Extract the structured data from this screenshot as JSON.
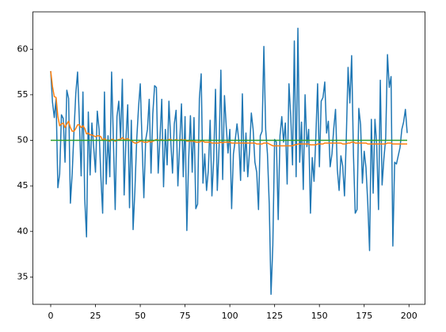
{
  "chart_data": {
    "type": "line",
    "x": [
      0,
      1,
      2,
      3,
      4,
      5,
      6,
      7,
      8,
      9,
      10,
      11,
      12,
      13,
      14,
      15,
      16,
      17,
      18,
      19,
      20,
      21,
      22,
      23,
      24,
      25,
      26,
      27,
      28,
      29,
      30,
      31,
      32,
      33,
      34,
      35,
      36,
      37,
      38,
      39,
      40,
      41,
      42,
      43,
      44,
      45,
      46,
      47,
      48,
      49,
      50,
      51,
      52,
      53,
      54,
      55,
      56,
      57,
      58,
      59,
      60,
      61,
      62,
      63,
      64,
      65,
      66,
      67,
      68,
      69,
      70,
      71,
      72,
      73,
      74,
      75,
      76,
      77,
      78,
      79,
      80,
      81,
      82,
      83,
      84,
      85,
      86,
      87,
      88,
      89,
      90,
      91,
      92,
      93,
      94,
      95,
      96,
      97,
      98,
      99,
      100,
      101,
      102,
      103,
      104,
      105,
      106,
      107,
      108,
      109,
      110,
      111,
      112,
      113,
      114,
      115,
      116,
      117,
      118,
      119,
      120,
      121,
      122,
      123,
      124,
      125,
      126,
      127,
      128,
      129,
      130,
      131,
      132,
      133,
      134,
      135,
      136,
      137,
      138,
      139,
      140,
      141,
      142,
      143,
      144,
      145,
      146,
      147,
      148,
      149,
      150,
      151,
      152,
      153,
      154,
      155,
      156,
      157,
      158,
      159,
      160,
      161,
      162,
      163,
      164,
      165,
      166,
      167,
      168,
      169,
      170,
      171,
      172,
      173,
      174,
      175,
      176,
      177,
      178,
      179,
      180,
      181,
      182,
      183,
      184,
      185,
      186,
      187,
      188,
      189,
      190,
      191,
      192,
      193,
      194,
      195,
      196,
      197,
      198,
      199
    ],
    "series": [
      {
        "color": "#1f77b4",
        "values": [
          57.6,
          54.2,
          52.5,
          54.6,
          44.8,
          46.3,
          52.8,
          52.4,
          47.6,
          55.5,
          54.6,
          43.1,
          46.4,
          51.0,
          55.1,
          57.5,
          52.2,
          46.1,
          55.3,
          43.6,
          39.4,
          53.1,
          46.2,
          51.9,
          49.2,
          46.5,
          53.2,
          51.2,
          46.0,
          42.0,
          55.3,
          45.2,
          50.5,
          46.0,
          57.5,
          50.0,
          42.4,
          52.6,
          54.3,
          50.2,
          56.7,
          44.0,
          50.1,
          53.9,
          42.6,
          52.2,
          40.2,
          44.5,
          50.0,
          53.5,
          56.2,
          49.8,
          43.7,
          50.0,
          51.2,
          54.5,
          46.4,
          52.9,
          56.0,
          55.8,
          46.4,
          50.2,
          54.5,
          44.9,
          51.2,
          47.3,
          54.3,
          50.0,
          46.4,
          51.8,
          53.3,
          45.0,
          49.6,
          54.0,
          46.0,
          52.6,
          40.1,
          47.8,
          52.7,
          46.5,
          52.5,
          42.5,
          43.0,
          54.6,
          57.3,
          45.3,
          48.5,
          44.5,
          46.7,
          52.2,
          43.9,
          48.0,
          55.6,
          44.5,
          49.3,
          57.7,
          45.7,
          54.9,
          51.5,
          48.6,
          51.2,
          42.5,
          48.5,
          50.0,
          51.8,
          50.0,
          45.6,
          55.1,
          46.6,
          50.8,
          46.0,
          48.8,
          53.0,
          51.2,
          47.6,
          46.5,
          42.4,
          50.5,
          51.0,
          60.3,
          51.2,
          48.5,
          43.0,
          33.1,
          38.5,
          50.1,
          49.8,
          41.3,
          50.5,
          52.6,
          49.8,
          51.9,
          45.2,
          56.2,
          52.6,
          47.3,
          60.9,
          46.0,
          62.3,
          47.6,
          52.0,
          44.6,
          55.0,
          49.3,
          51.2,
          42.0,
          48.1,
          45.5,
          50.3,
          56.2,
          47.1,
          54.3,
          54.7,
          56.4,
          50.8,
          52.1,
          47.1,
          48.5,
          51.3,
          53.4,
          46.8,
          44.5,
          48.3,
          47.2,
          43.9,
          50.2,
          58.0,
          54.1,
          59.3,
          48.5,
          42.0,
          42.4,
          53.5,
          51.7,
          45.3,
          48.8,
          47.0,
          43.1,
          37.9,
          52.3,
          44.2,
          52.3,
          49.5,
          42.4,
          56.6,
          45.1,
          48.0,
          50.2,
          59.4,
          55.8,
          57.0,
          38.4,
          47.6,
          47.4,
          48.3,
          49.2,
          51.2,
          52.0,
          53.4,
          50.8
        ]
      },
      {
        "color": "#ff7f0e",
        "values": [
          57.6,
          55.9,
          54.8,
          54.7,
          52.6,
          51.6,
          51.8,
          51.9,
          51.4,
          51.8,
          52.1,
          51.4,
          51.0,
          51.0,
          51.3,
          51.7,
          51.7,
          51.4,
          51.6,
          51.3,
          50.7,
          50.8,
          50.6,
          50.6,
          50.5,
          50.4,
          50.5,
          50.5,
          50.4,
          50.0,
          50.2,
          50.0,
          50.0,
          49.9,
          50.1,
          50.1,
          49.9,
          50.0,
          50.1,
          50.1,
          50.3,
          50.1,
          50.1,
          50.2,
          50.0,
          50.0,
          49.8,
          49.7,
          49.7,
          49.8,
          49.9,
          49.9,
          49.8,
          49.8,
          49.8,
          49.9,
          49.8,
          49.9,
          50.0,
          50.1,
          50.0,
          50.0,
          50.1,
          50.0,
          50.0,
          50.0,
          50.1,
          50.1,
          50.0,
          50.0,
          50.1,
          50.0,
          50.0,
          50.1,
          50.0,
          50.1,
          49.9,
          49.9,
          49.9,
          49.9,
          49.9,
          49.8,
          49.8,
          49.8,
          49.9,
          49.9,
          49.8,
          49.8,
          49.8,
          49.8,
          49.7,
          49.7,
          49.7,
          49.7,
          49.7,
          49.8,
          49.7,
          49.8,
          49.8,
          49.8,
          49.8,
          49.7,
          49.7,
          49.7,
          49.7,
          49.7,
          49.7,
          49.7,
          49.7,
          49.7,
          49.7,
          49.7,
          49.7,
          49.7,
          49.7,
          49.6,
          49.6,
          49.6,
          49.6,
          49.7,
          49.7,
          49.7,
          49.6,
          49.5,
          49.4,
          49.4,
          49.4,
          49.4,
          49.4,
          49.4,
          49.4,
          49.4,
          49.4,
          49.4,
          49.4,
          49.4,
          49.5,
          49.5,
          49.6,
          49.6,
          49.6,
          49.6,
          49.6,
          49.6,
          49.6,
          49.5,
          49.5,
          49.5,
          49.5,
          49.6,
          49.6,
          49.6,
          49.6,
          49.7,
          49.7,
          49.7,
          49.7,
          49.7,
          49.7,
          49.7,
          49.7,
          49.7,
          49.7,
          49.6,
          49.6,
          49.6,
          49.7,
          49.7,
          49.8,
          49.8,
          49.7,
          49.7,
          49.7,
          49.7,
          49.7,
          49.7,
          49.7,
          49.6,
          49.6,
          49.6,
          49.6,
          49.6,
          49.6,
          49.6,
          49.6,
          49.6,
          49.6,
          49.6,
          49.7,
          49.7,
          49.7,
          49.6,
          49.6,
          49.6,
          49.6,
          49.6,
          49.6,
          49.6,
          49.6,
          49.6
        ]
      },
      {
        "color": "#2ca02c",
        "values": [
          50,
          50,
          50,
          50,
          50,
          50,
          50,
          50,
          50,
          50,
          50,
          50,
          50,
          50,
          50,
          50,
          50,
          50,
          50,
          50,
          50,
          50,
          50,
          50,
          50,
          50,
          50,
          50,
          50,
          50,
          50,
          50,
          50,
          50,
          50,
          50,
          50,
          50,
          50,
          50,
          50,
          50,
          50,
          50,
          50,
          50,
          50,
          50,
          50,
          50,
          50,
          50,
          50,
          50,
          50,
          50,
          50,
          50,
          50,
          50,
          50,
          50,
          50,
          50,
          50,
          50,
          50,
          50,
          50,
          50,
          50,
          50,
          50,
          50,
          50,
          50,
          50,
          50,
          50,
          50,
          50,
          50,
          50,
          50,
          50,
          50,
          50,
          50,
          50,
          50,
          50,
          50,
          50,
          50,
          50,
          50,
          50,
          50,
          50,
          50,
          50,
          50,
          50,
          50,
          50,
          50,
          50,
          50,
          50,
          50,
          50,
          50,
          50,
          50,
          50,
          50,
          50,
          50,
          50,
          50,
          50,
          50,
          50,
          50,
          50,
          50,
          50,
          50,
          50,
          50,
          50,
          50,
          50,
          50,
          50,
          50,
          50,
          50,
          50,
          50,
          50,
          50,
          50,
          50,
          50,
          50,
          50,
          50,
          50,
          50,
          50,
          50,
          50,
          50,
          50,
          50,
          50,
          50,
          50,
          50,
          50,
          50,
          50,
          50,
          50,
          50,
          50,
          50,
          50,
          50,
          50,
          50,
          50,
          50,
          50,
          50,
          50,
          50,
          50,
          50,
          50,
          50,
          50,
          50,
          50,
          50,
          50,
          50,
          50,
          50,
          50,
          50,
          50,
          50,
          50,
          50,
          50,
          50,
          50,
          50
        ]
      }
    ],
    "xlim": [
      -9.95,
      208.95
    ],
    "xticks": [
      0,
      25,
      50,
      75,
      100,
      125,
      150,
      175,
      200
    ],
    "ylim": [
      32.0,
      64.1
    ],
    "yticks": [
      35,
      40,
      45,
      50,
      55,
      60
    ],
    "grid": false
  }
}
